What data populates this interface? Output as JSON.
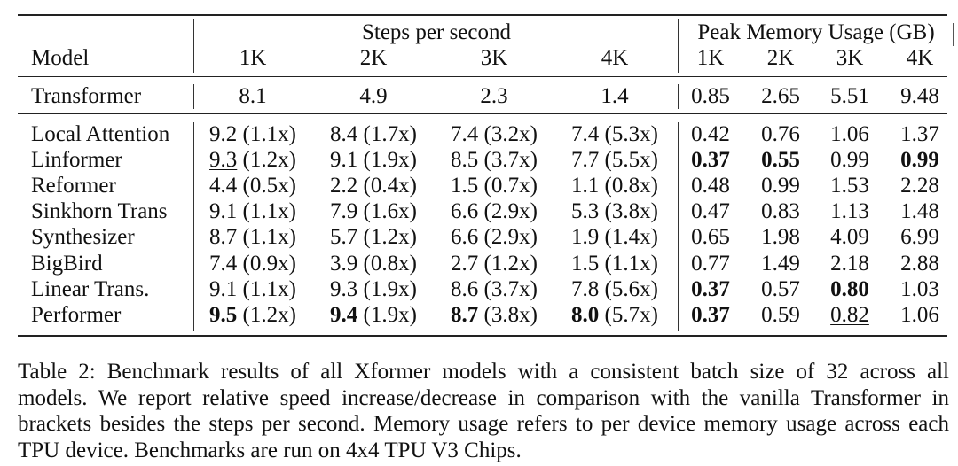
{
  "table": {
    "group_headers": {
      "steps": "Steps per second",
      "memory": "Peak Memory Usage (GB)"
    },
    "model_header": "Model",
    "subheaders": [
      "1K",
      "2K",
      "3K",
      "4K",
      "1K",
      "2K",
      "3K",
      "4K"
    ],
    "baseline": {
      "model": "Transformer",
      "cells": [
        {
          "v": "8.1"
        },
        {
          "v": "4.9"
        },
        {
          "v": "2.3"
        },
        {
          "v": "1.4"
        },
        {
          "v": "0.85"
        },
        {
          "v": "2.65"
        },
        {
          "v": "5.51"
        },
        {
          "v": "9.48"
        }
      ]
    },
    "rows": [
      {
        "model": "Local Attention",
        "cells": [
          {
            "v": "9.2",
            "r": " (1.1x)"
          },
          {
            "v": "8.4",
            "r": " (1.7x)"
          },
          {
            "v": "7.4",
            "r": " (3.2x)"
          },
          {
            "v": "7.4",
            "r": " (5.3x)"
          },
          {
            "v": "0.42"
          },
          {
            "v": "0.76"
          },
          {
            "v": "1.06"
          },
          {
            "v": "1.37"
          }
        ]
      },
      {
        "model": "Linformer",
        "cells": [
          {
            "v": "9.3",
            "r": " (1.2x)",
            "ul": true
          },
          {
            "v": "9.1",
            "r": " (1.9x)"
          },
          {
            "v": "8.5",
            "r": " (3.7x)"
          },
          {
            "v": "7.7",
            "r": " (5.5x)"
          },
          {
            "v": "0.37",
            "b": true
          },
          {
            "v": "0.55",
            "b": true
          },
          {
            "v": "0.99"
          },
          {
            "v": "0.99",
            "b": true
          }
        ]
      },
      {
        "model": "Reformer",
        "cells": [
          {
            "v": "4.4",
            "r": " (0.5x)"
          },
          {
            "v": "2.2",
            "r": " (0.4x)"
          },
          {
            "v": "1.5",
            "r": " (0.7x)"
          },
          {
            "v": "1.1",
            "r": " (0.8x)"
          },
          {
            "v": "0.48"
          },
          {
            "v": "0.99"
          },
          {
            "v": "1.53"
          },
          {
            "v": "2.28"
          }
        ]
      },
      {
        "model": "Sinkhorn Trans",
        "cells": [
          {
            "v": "9.1",
            "r": " (1.1x)"
          },
          {
            "v": "7.9",
            "r": " (1.6x)"
          },
          {
            "v": "6.6",
            "r": " (2.9x)"
          },
          {
            "v": "5.3",
            "r": " (3.8x)"
          },
          {
            "v": "0.47"
          },
          {
            "v": "0.83"
          },
          {
            "v": "1.13"
          },
          {
            "v": "1.48"
          }
        ]
      },
      {
        "model": "Synthesizer",
        "cells": [
          {
            "v": "8.7",
            "r": " (1.1x)"
          },
          {
            "v": "5.7",
            "r": " (1.2x)"
          },
          {
            "v": "6.6",
            "r": " (2.9x)"
          },
          {
            "v": "1.9",
            "r": " (1.4x)"
          },
          {
            "v": "0.65"
          },
          {
            "v": "1.98"
          },
          {
            "v": "4.09"
          },
          {
            "v": "6.99"
          }
        ]
      },
      {
        "model": "BigBird",
        "cells": [
          {
            "v": "7.4",
            "r": " (0.9x)"
          },
          {
            "v": "3.9",
            "r": " (0.8x)"
          },
          {
            "v": "2.7",
            "r": " (1.2x)"
          },
          {
            "v": "1.5",
            "r": " (1.1x)"
          },
          {
            "v": "0.77"
          },
          {
            "v": "1.49"
          },
          {
            "v": "2.18"
          },
          {
            "v": "2.88"
          }
        ]
      },
      {
        "model": "Linear Trans.",
        "cells": [
          {
            "v": "9.1",
            "r": " (1.1x)"
          },
          {
            "v": "9.3",
            "r": " (1.9x)",
            "ul": true
          },
          {
            "v": "8.6",
            "r": " (3.7x)",
            "ul": true
          },
          {
            "v": "7.8",
            "r": " (5.6x)",
            "ul": true
          },
          {
            "v": "0.37",
            "b": true
          },
          {
            "v": "0.57",
            "ul": true
          },
          {
            "v": "0.80",
            "b": true
          },
          {
            "v": "1.03",
            "ul": true
          }
        ]
      },
      {
        "model": "Performer",
        "cells": [
          {
            "v": "9.5",
            "r": " (1.2x)",
            "b": true
          },
          {
            "v": "9.4",
            "r": " (1.9x)",
            "b": true
          },
          {
            "v": "8.7",
            "r": " (3.8x)",
            "b": true
          },
          {
            "v": "8.0",
            "r": " (5.7x)",
            "b": true
          },
          {
            "v": "0.37",
            "b": true
          },
          {
            "v": "0.59"
          },
          {
            "v": "0.82",
            "ul": true
          },
          {
            "v": "1.06"
          }
        ]
      }
    ]
  },
  "caption": {
    "lines": [
      "Table 2: Benchmark results of all Xformer models with a consistent batch size of 32 across all",
      "models. We report relative speed increase/decrease in comparison with the vanilla Transformer in",
      "brackets besides the steps per second. Memory usage refers to per device memory usage across each",
      "TPU device. Benchmarks are run on 4x4 TPU V3 Chips."
    ]
  }
}
